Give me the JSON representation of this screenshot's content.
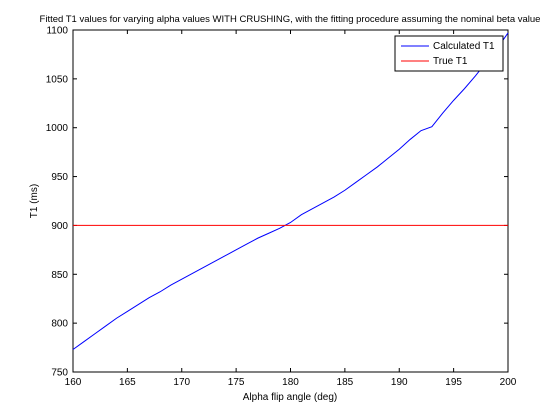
{
  "chart_data": {
    "type": "line",
    "title": "Fitted T1 values for varying alpha values WITH CRUSHING, with the fitting procedure assuming the nominal beta value",
    "xlabel": "Alpha flip angle (deg)",
    "ylabel": "T1 (ms)",
    "xlim": [
      160,
      200
    ],
    "ylim": [
      750,
      1100
    ],
    "xticks": [
      160,
      165,
      170,
      175,
      180,
      185,
      190,
      195,
      200
    ],
    "yticks": [
      750,
      800,
      850,
      900,
      950,
      1000,
      1050,
      1100
    ],
    "grid": false,
    "legend_position": "top-right",
    "series": [
      {
        "name": "Calculated T1",
        "color": "#0000ff",
        "x": [
          160,
          161,
          162,
          163,
          164,
          165,
          166,
          167,
          168,
          169,
          170,
          171,
          172,
          173,
          174,
          175,
          176,
          177,
          178,
          179,
          180,
          181,
          182,
          183,
          184,
          185,
          186,
          187,
          188,
          189,
          190,
          191,
          192,
          193,
          194,
          195,
          196,
          197,
          198,
          199,
          200
        ],
        "y": [
          773,
          781,
          789,
          797,
          805,
          812,
          819,
          826,
          832,
          839,
          845,
          851,
          857,
          863,
          869,
          875,
          881,
          887,
          892,
          897,
          903,
          911,
          917,
          923,
          929,
          936,
          944,
          952,
          960,
          969,
          978,
          988,
          997,
          1001,
          1015,
          1028,
          1040,
          1053,
          1067,
          1081,
          1097
        ]
      },
      {
        "name": "True T1",
        "color": "#ff0000",
        "x": [
          160,
          200
        ],
        "y": [
          900,
          900
        ]
      }
    ]
  }
}
